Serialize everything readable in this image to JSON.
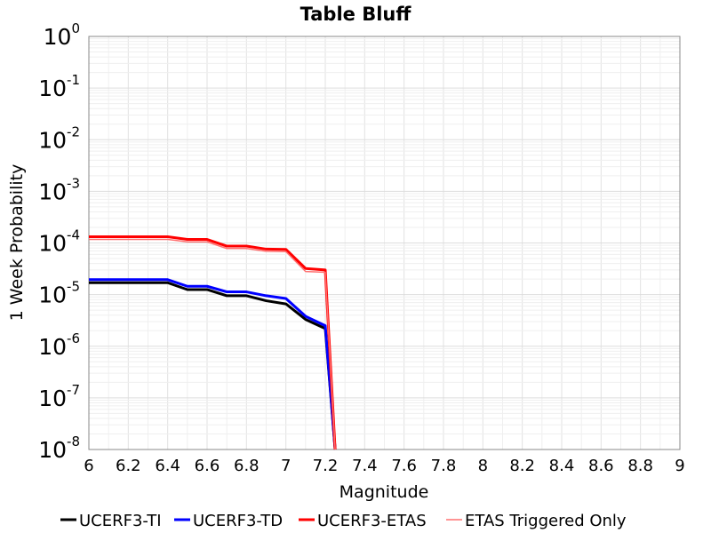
{
  "chart_data": {
    "type": "line",
    "title": "Table Bluff",
    "xlabel": "Magnitude",
    "ylabel": "1 Week Probability",
    "xlim": [
      6,
      9
    ],
    "ylim": [
      1e-08,
      1
    ],
    "yscale": "log",
    "grid": true,
    "legend_position": "bottom",
    "x_ticks": [
      "6",
      "6.2",
      "6.4",
      "6.6",
      "6.8",
      "7",
      "7.2",
      "7.4",
      "7.6",
      "7.8",
      "8",
      "8.2",
      "8.4",
      "8.6",
      "8.8",
      "9"
    ],
    "y_ticks": [
      {
        "base": "10",
        "exp": "0"
      },
      {
        "base": "10",
        "exp": "-1"
      },
      {
        "base": "10",
        "exp": "-2"
      },
      {
        "base": "10",
        "exp": "-3"
      },
      {
        "base": "10",
        "exp": "-4"
      },
      {
        "base": "10",
        "exp": "-5"
      },
      {
        "base": "10",
        "exp": "-6"
      },
      {
        "base": "10",
        "exp": "-7"
      },
      {
        "base": "10",
        "exp": "-8"
      }
    ],
    "x": [
      6.0,
      6.1,
      6.2,
      6.3,
      6.4,
      6.5,
      6.6,
      6.7,
      6.8,
      6.9,
      7.0,
      7.1,
      7.2,
      7.25
    ],
    "series": [
      {
        "name": "UCERF3-TI",
        "color": "#000000",
        "width": 3,
        "values": [
          1.7e-05,
          1.7e-05,
          1.7e-05,
          1.7e-05,
          1.7e-05,
          1.25e-05,
          1.25e-05,
          9.5e-06,
          9.5e-06,
          7.6e-06,
          6.6e-06,
          3.3e-06,
          2.2e-06,
          1e-08
        ]
      },
      {
        "name": "UCERF3-TD",
        "color": "#0000ff",
        "width": 3,
        "values": [
          1.95e-05,
          1.95e-05,
          1.95e-05,
          1.95e-05,
          1.95e-05,
          1.45e-05,
          1.45e-05,
          1.13e-05,
          1.13e-05,
          9.5e-06,
          8.4e-06,
          3.8e-06,
          2.5e-06,
          1e-08
        ]
      },
      {
        "name": "UCERF3-ETAS",
        "color": "#ff0000",
        "width": 3,
        "values": [
          0.000132,
          0.000132,
          0.000132,
          0.000132,
          0.000132,
          0.000117,
          0.000117,
          8.7e-05,
          8.7e-05,
          7.6e-05,
          7.5e-05,
          3.2e-05,
          3e-05,
          1e-08
        ]
      },
      {
        "name": "ETAS Triggered Only",
        "color": "#ff7070",
        "width": 1.5,
        "values": [
          0.000117,
          0.000117,
          0.000117,
          0.000117,
          0.000117,
          0.000105,
          0.000105,
          7.8e-05,
          7.8e-05,
          6.9e-05,
          6.8e-05,
          2.8e-05,
          2.7e-05,
          1e-08
        ]
      }
    ]
  }
}
